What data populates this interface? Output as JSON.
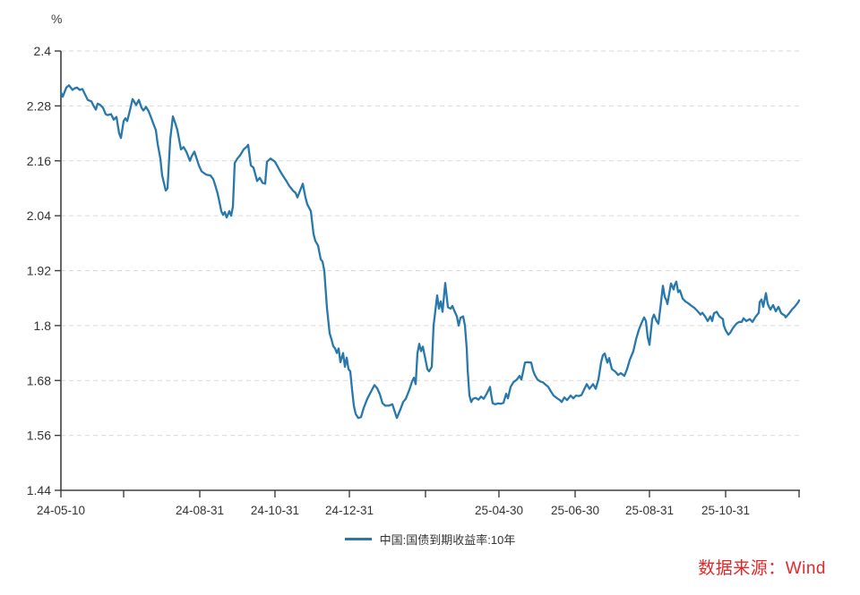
{
  "page": {
    "background": "#ffffff"
  },
  "chart": {
    "unit_label": "%",
    "axis_color": "#3f3f3f",
    "grid_color": "#d9d9d9",
    "tick_label_color": "#333333"
  },
  "legend": {
    "label": "中国:国债到期收益率:10年",
    "line_color": "#2878ab",
    "text_color": "#333333"
  },
  "source": {
    "text": "数据来源：Wind",
    "color": "#e3282a"
  },
  "chart_data": {
    "type": "line",
    "title": "",
    "unit": "%",
    "series_name": "中国:国债到期收益率:10年",
    "line_color": "#2878ab",
    "grid": true,
    "legend_position": "bottom-center",
    "interpolation": "linear",
    "y_axis": {
      "min": 1.44,
      "max": 2.4,
      "ticks": [
        "2.4",
        "2.28",
        "2.16",
        "2.04",
        "1.92",
        "1.8",
        "1.68",
        "1.56",
        "1.44"
      ]
    },
    "x_axis": {
      "ticks": [
        {
          "pos": 0.0,
          "label": "24-05-10"
        },
        {
          "pos": 0.085,
          "label": ""
        },
        {
          "pos": 0.1881,
          "label": "24-08-31"
        },
        {
          "pos": 0.29,
          "label": "24-10-31"
        },
        {
          "pos": 0.3908,
          "label": "24-12-31"
        },
        {
          "pos": 0.4939,
          "label": ""
        },
        {
          "pos": 0.5934,
          "label": "25-04-30"
        },
        {
          "pos": 0.6966,
          "label": "25-06-30"
        },
        {
          "pos": 0.7973,
          "label": "25-08-31"
        },
        {
          "pos": 0.9005,
          "label": "25-10-31"
        },
        {
          "pos": 1.0,
          "label": ""
        }
      ]
    },
    "points": [
      [
        0.0,
        2.31
      ],
      [
        0.0024,
        2.3
      ],
      [
        0.0073,
        2.32
      ],
      [
        0.0109,
        2.325
      ],
      [
        0.0158,
        2.315
      ],
      [
        0.0182,
        2.318
      ],
      [
        0.0218,
        2.32
      ],
      [
        0.0255,
        2.315
      ],
      [
        0.0291,
        2.317
      ],
      [
        0.0328,
        2.305
      ],
      [
        0.0364,
        2.293
      ],
      [
        0.0413,
        2.29
      ],
      [
        0.0437,
        2.282
      ],
      [
        0.0473,
        2.272
      ],
      [
        0.0498,
        2.285
      ],
      [
        0.0534,
        2.282
      ],
      [
        0.057,
        2.276
      ],
      [
        0.0607,
        2.262
      ],
      [
        0.0631,
        2.26
      ],
      [
        0.068,
        2.262
      ],
      [
        0.0716,
        2.25
      ],
      [
        0.0752,
        2.256
      ],
      [
        0.0789,
        2.22
      ],
      [
        0.0813,
        2.21
      ],
      [
        0.085,
        2.247
      ],
      [
        0.0874,
        2.253
      ],
      [
        0.0898,
        2.247
      ],
      [
        0.0934,
        2.27
      ],
      [
        0.0971,
        2.295
      ],
      [
        0.1019,
        2.282
      ],
      [
        0.1056,
        2.293
      ],
      [
        0.1092,
        2.276
      ],
      [
        0.1117,
        2.27
      ],
      [
        0.1153,
        2.278
      ],
      [
        0.1189,
        2.268
      ],
      [
        0.1226,
        2.253
      ],
      [
        0.1262,
        2.237
      ],
      [
        0.1286,
        2.227
      ],
      [
        0.1311,
        2.197
      ],
      [
        0.1347,
        2.165
      ],
      [
        0.1371,
        2.128
      ],
      [
        0.142,
        2.095
      ],
      [
        0.1444,
        2.1
      ],
      [
        0.1481,
        2.207
      ],
      [
        0.1517,
        2.257
      ],
      [
        0.1553,
        2.24
      ],
      [
        0.1578,
        2.227
      ],
      [
        0.1626,
        2.185
      ],
      [
        0.1663,
        2.19
      ],
      [
        0.1699,
        2.18
      ],
      [
        0.1748,
        2.16
      ],
      [
        0.1772,
        2.17
      ],
      [
        0.1808,
        2.18
      ],
      [
        0.1869,
        2.15
      ],
      [
        0.1905,
        2.137
      ],
      [
        0.1966,
        2.13
      ],
      [
        0.2027,
        2.128
      ],
      [
        0.2063,
        2.12
      ],
      [
        0.2087,
        2.108
      ],
      [
        0.2124,
        2.088
      ],
      [
        0.2148,
        2.07
      ],
      [
        0.2172,
        2.05
      ],
      [
        0.2197,
        2.042
      ],
      [
        0.2221,
        2.048
      ],
      [
        0.2245,
        2.036
      ],
      [
        0.2282,
        2.05
      ],
      [
        0.2306,
        2.04
      ],
      [
        0.233,
        2.06
      ],
      [
        0.2354,
        2.155
      ],
      [
        0.2391,
        2.165
      ],
      [
        0.2427,
        2.172
      ],
      [
        0.2476,
        2.185
      ],
      [
        0.2512,
        2.19
      ],
      [
        0.2536,
        2.195
      ],
      [
        0.2573,
        2.15
      ],
      [
        0.2609,
        2.145
      ],
      [
        0.2658,
        2.116
      ],
      [
        0.2694,
        2.123
      ],
      [
        0.273,
        2.112
      ],
      [
        0.2767,
        2.11
      ],
      [
        0.2791,
        2.158
      ],
      [
        0.284,
        2.165
      ],
      [
        0.29,
        2.158
      ],
      [
        0.2961,
        2.14
      ],
      [
        0.2997,
        2.13
      ],
      [
        0.3058,
        2.115
      ],
      [
        0.3095,
        2.105
      ],
      [
        0.3143,
        2.095
      ],
      [
        0.318,
        2.09
      ],
      [
        0.3204,
        2.08
      ],
      [
        0.324,
        2.095
      ],
      [
        0.3277,
        2.11
      ],
      [
        0.3313,
        2.08
      ],
      [
        0.3337,
        2.065
      ],
      [
        0.3386,
        2.05
      ],
      [
        0.3422,
        2.0
      ],
      [
        0.3447,
        1.985
      ],
      [
        0.3483,
        1.975
      ],
      [
        0.3519,
        1.945
      ],
      [
        0.3544,
        1.94
      ],
      [
        0.3568,
        1.92
      ],
      [
        0.3604,
        1.838
      ],
      [
        0.3641,
        1.783
      ],
      [
        0.3665,
        1.77
      ],
      [
        0.3689,
        1.755
      ],
      [
        0.3714,
        1.75
      ],
      [
        0.3738,
        1.74
      ],
      [
        0.3762,
        1.75
      ],
      [
        0.3786,
        1.72
      ],
      [
        0.3823,
        1.74
      ],
      [
        0.3847,
        1.71
      ],
      [
        0.3871,
        1.73
      ],
      [
        0.3896,
        1.705
      ],
      [
        0.392,
        1.7
      ],
      [
        0.3944,
        1.66
      ],
      [
        0.3968,
        1.625
      ],
      [
        0.3993,
        1.607
      ],
      [
        0.4029,
        1.598
      ],
      [
        0.4066,
        1.6
      ],
      [
        0.4102,
        1.62
      ],
      [
        0.415,
        1.64
      ],
      [
        0.4199,
        1.655
      ],
      [
        0.4247,
        1.67
      ],
      [
        0.4284,
        1.663
      ],
      [
        0.432,
        1.65
      ],
      [
        0.4357,
        1.63
      ],
      [
        0.4393,
        1.625
      ],
      [
        0.4442,
        1.625
      ],
      [
        0.449,
        1.628
      ],
      [
        0.4527,
        1.61
      ],
      [
        0.4551,
        1.598
      ],
      [
        0.4599,
        1.617
      ],
      [
        0.4636,
        1.633
      ],
      [
        0.4672,
        1.64
      ],
      [
        0.4721,
        1.66
      ],
      [
        0.4757,
        1.678
      ],
      [
        0.4782,
        1.686
      ],
      [
        0.4806,
        1.672
      ],
      [
        0.483,
        1.74
      ],
      [
        0.4854,
        1.76
      ],
      [
        0.4879,
        1.744
      ],
      [
        0.4903,
        1.754
      ],
      [
        0.4939,
        1.725
      ],
      [
        0.4964,
        1.705
      ],
      [
        0.4988,
        1.7
      ],
      [
        0.5024,
        1.71
      ],
      [
        0.5049,
        1.8
      ],
      [
        0.5097,
        1.866
      ],
      [
        0.5121,
        1.837
      ],
      [
        0.5146,
        1.853
      ],
      [
        0.517,
        1.83
      ],
      [
        0.5206,
        1.893
      ],
      [
        0.5243,
        1.84
      ],
      [
        0.5279,
        1.837
      ],
      [
        0.5304,
        1.843
      ],
      [
        0.5328,
        1.833
      ],
      [
        0.5364,
        1.82
      ],
      [
        0.5388,
        1.8
      ],
      [
        0.5413,
        1.817
      ],
      [
        0.5449,
        1.82
      ],
      [
        0.5473,
        1.8
      ],
      [
        0.5497,
        1.75
      ],
      [
        0.551,
        1.705
      ],
      [
        0.5534,
        1.647
      ],
      [
        0.5558,
        1.633
      ],
      [
        0.5583,
        1.64
      ],
      [
        0.5619,
        1.642
      ],
      [
        0.5655,
        1.638
      ],
      [
        0.5692,
        1.645
      ],
      [
        0.5728,
        1.64
      ],
      [
        0.5765,
        1.65
      ],
      [
        0.5789,
        1.658
      ],
      [
        0.5813,
        1.666
      ],
      [
        0.5825,
        1.652
      ],
      [
        0.585,
        1.63
      ],
      [
        0.5886,
        1.628
      ],
      [
        0.5922,
        1.63
      ],
      [
        0.5959,
        1.629
      ],
      [
        0.5995,
        1.631
      ],
      [
        0.6032,
        1.651
      ],
      [
        0.6056,
        1.641
      ],
      [
        0.6092,
        1.666
      ],
      [
        0.6129,
        1.676
      ],
      [
        0.6177,
        1.682
      ],
      [
        0.6214,
        1.69
      ],
      [
        0.6238,
        1.682
      ],
      [
        0.6262,
        1.7
      ],
      [
        0.6286,
        1.719
      ],
      [
        0.6323,
        1.72
      ],
      [
        0.6371,
        1.719
      ],
      [
        0.6396,
        1.702
      ],
      [
        0.642,
        1.692
      ],
      [
        0.6456,
        1.682
      ],
      [
        0.6493,
        1.678
      ],
      [
        0.6529,
        1.676
      ],
      [
        0.6565,
        1.671
      ],
      [
        0.6602,
        1.666
      ],
      [
        0.6638,
        1.656
      ],
      [
        0.6675,
        1.647
      ],
      [
        0.6723,
        1.641
      ],
      [
        0.676,
        1.637
      ],
      [
        0.6784,
        1.633
      ],
      [
        0.682,
        1.643
      ],
      [
        0.6857,
        1.637
      ],
      [
        0.6905,
        1.647
      ],
      [
        0.6942,
        1.641
      ],
      [
        0.6978,
        1.647
      ],
      [
        0.7015,
        1.646
      ],
      [
        0.7051,
        1.648
      ],
      [
        0.7087,
        1.66
      ],
      [
        0.7124,
        1.672
      ],
      [
        0.716,
        1.662
      ],
      [
        0.7209,
        1.672
      ],
      [
        0.7245,
        1.662
      ],
      [
        0.7282,
        1.682
      ],
      [
        0.7318,
        1.72
      ],
      [
        0.7342,
        1.735
      ],
      [
        0.7367,
        1.739
      ],
      [
        0.7403,
        1.719
      ],
      [
        0.7427,
        1.729
      ],
      [
        0.7464,
        1.705
      ],
      [
        0.7512,
        1.699
      ],
      [
        0.7549,
        1.692
      ],
      [
        0.7585,
        1.696
      ],
      [
        0.7634,
        1.69
      ],
      [
        0.767,
        1.705
      ],
      [
        0.7706,
        1.725
      ],
      [
        0.7755,
        1.744
      ],
      [
        0.7791,
        1.77
      ],
      [
        0.7828,
        1.79
      ],
      [
        0.7864,
        1.805
      ],
      [
        0.79,
        1.818
      ],
      [
        0.7925,
        1.81
      ],
      [
        0.7949,
        1.775
      ],
      [
        0.7973,
        1.758
      ],
      [
        0.801,
        1.814
      ],
      [
        0.8034,
        1.824
      ],
      [
        0.807,
        1.81
      ],
      [
        0.8095,
        1.804
      ],
      [
        0.8131,
        1.853
      ],
      [
        0.8155,
        1.887
      ],
      [
        0.818,
        1.863
      ],
      [
        0.8204,
        1.855
      ],
      [
        0.8216,
        1.847
      ],
      [
        0.824,
        1.869
      ],
      [
        0.8265,
        1.892
      ],
      [
        0.8301,
        1.879
      ],
      [
        0.8313,
        1.888
      ],
      [
        0.8337,
        1.896
      ],
      [
        0.8362,
        1.873
      ],
      [
        0.8386,
        1.877
      ],
      [
        0.8422,
        1.859
      ],
      [
        0.8459,
        1.853
      ],
      [
        0.8495,
        1.849
      ],
      [
        0.8544,
        1.843
      ],
      [
        0.858,
        1.839
      ],
      [
        0.8617,
        1.833
      ],
      [
        0.8665,
        1.824
      ],
      [
        0.8689,
        1.828
      ],
      [
        0.8726,
        1.82
      ],
      [
        0.8762,
        1.81
      ],
      [
        0.8799,
        1.82
      ],
      [
        0.8823,
        1.81
      ],
      [
        0.8847,
        1.827
      ],
      [
        0.8883,
        1.83
      ],
      [
        0.892,
        1.82
      ],
      [
        0.8968,
        1.814
      ],
      [
        0.8981,
        1.8
      ],
      [
        0.9005,
        1.79
      ],
      [
        0.9041,
        1.78
      ],
      [
        0.9066,
        1.784
      ],
      [
        0.9102,
        1.794
      ],
      [
        0.915,
        1.804
      ],
      [
        0.9187,
        1.808
      ],
      [
        0.9223,
        1.808
      ],
      [
        0.9248,
        1.816
      ],
      [
        0.9284,
        1.81
      ],
      [
        0.9333,
        1.814
      ],
      [
        0.9369,
        1.808
      ],
      [
        0.9405,
        1.818
      ],
      [
        0.9454,
        1.828
      ],
      [
        0.9466,
        1.851
      ],
      [
        0.949,
        1.857
      ],
      [
        0.9515,
        1.841
      ],
      [
        0.9551,
        1.871
      ],
      [
        0.9575,
        1.847
      ],
      [
        0.9612,
        1.835
      ],
      [
        0.9648,
        1.845
      ],
      [
        0.9684,
        1.831
      ],
      [
        0.9721,
        1.841
      ],
      [
        0.9757,
        1.827
      ],
      [
        0.9806,
        1.822
      ],
      [
        0.9818,
        1.818
      ],
      [
        0.9866,
        1.827
      ],
      [
        0.9903,
        1.835
      ],
      [
        0.9939,
        1.841
      ],
      [
        0.9988,
        1.851
      ],
      [
        1.0,
        1.855
      ]
    ]
  }
}
